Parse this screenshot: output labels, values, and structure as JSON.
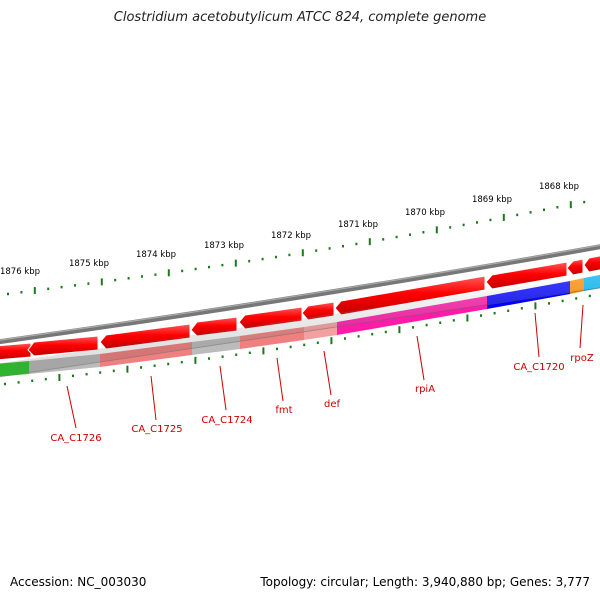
{
  "title": "Clostridium acetobutylicum ATCC 824, complete genome",
  "footer": {
    "accession": "Accession: NC_003030",
    "summary": "Topology: circular; Length: 3,940,880 bp; Genes: 3,777"
  },
  "map": {
    "ticks": [
      "1876 kbp",
      "1875 kbp",
      "1874 kbp",
      "1873 kbp",
      "1872 kbp",
      "1871 kbp",
      "1870 kbp",
      "1869 kbp",
      "1868 kbp"
    ],
    "genes": [
      {
        "name": "CA_C1726"
      },
      {
        "name": "CA_C1725"
      },
      {
        "name": "CA_C1724"
      },
      {
        "name": "fmt"
      },
      {
        "name": "def"
      },
      {
        "name": "rpiA"
      },
      {
        "name": "CA_C1720"
      },
      {
        "name": "rpoZ"
      }
    ],
    "colors": {
      "gene_arrow": "#ff0000",
      "backbone": "#777777",
      "tick": "#1a7a1a",
      "label": "#cc0000",
      "cds_grey": "#bbbbbb",
      "cds_pink": "#f08080",
      "cds_magenta": "#ff1aa8",
      "cds_blue": "#0000ff",
      "cds_orange": "#ff8c00",
      "cds_cyan": "#00b4f0",
      "cds_green": "#33cc33"
    }
  }
}
